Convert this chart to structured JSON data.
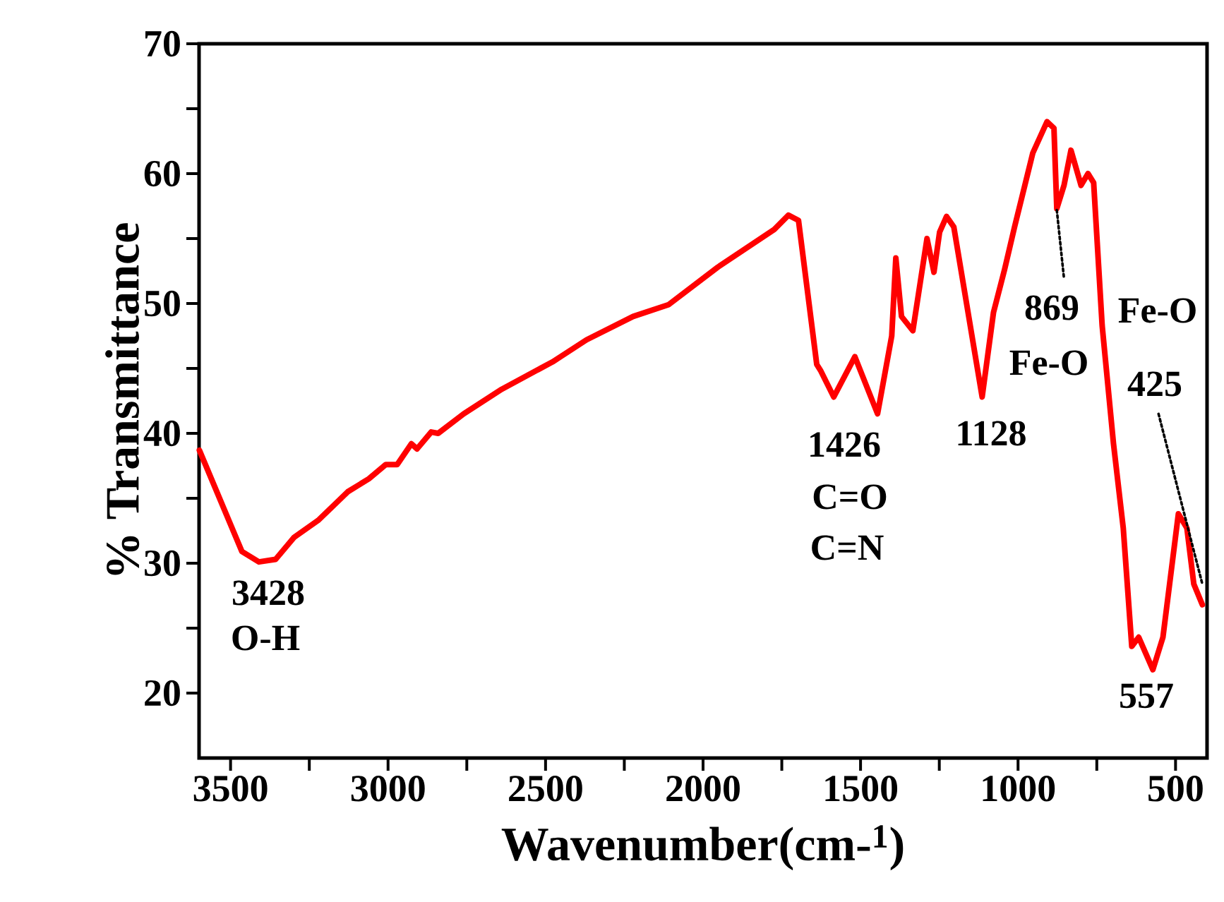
{
  "chart_data": {
    "type": "line",
    "xlabel": "Wavenumber(cm-$^{1}$)",
    "ylabel": "% Transmittance",
    "xlim": [
      3600,
      400
    ],
    "ylim": [
      15,
      70
    ],
    "xticks": [
      3500,
      {
        "value": 3250,
        "label": null
      },
      3000,
      {
        "value": 2750,
        "label": null
      },
      2500,
      {
        "value": 2250,
        "label": null
      },
      2000,
      {
        "value": 1750,
        "label": null
      },
      1500,
      {
        "value": 1250,
        "label": null
      },
      1000,
      {
        "value": 750,
        "label": null
      },
      500
    ],
    "yticks": [
      20,
      {
        "value": 25,
        "label": null
      },
      30,
      {
        "value": 35,
        "label": null
      },
      40,
      {
        "value": 45,
        "label": null
      },
      50,
      {
        "value": 55,
        "label": null
      },
      60,
      {
        "value": 65,
        "label": null
      },
      70
    ],
    "marker": "none",
    "series": [
      {
        "color": "#ff0000",
        "line_style": "solid",
        "x": [
          3599,
          3464,
          3410,
          3357,
          3298,
          3222,
          3128,
          3061,
          3007,
          2971,
          2926,
          2908,
          2863,
          2841,
          2760,
          2639,
          2478,
          2370,
          2222,
          2110,
          1953,
          1774,
          1729,
          1697,
          1639,
          1626,
          1585,
          1518,
          1446,
          1401,
          1388,
          1370,
          1334,
          1289,
          1267,
          1249,
          1227,
          1204,
          1114,
          1078,
          1043,
          1011,
          953,
          908,
          886,
          877,
          854,
          832,
          800,
          778,
          760,
          733,
          697,
          666,
          639,
          617,
          572,
          540,
          491,
          464,
          442,
          415
        ],
        "values": [
          38.7,
          30.9,
          30.1,
          30.3,
          32.0,
          33.3,
          35.5,
          36.5,
          37.6,
          37.6,
          39.2,
          38.8,
          40.1,
          40.0,
          41.5,
          43.4,
          45.5,
          47.2,
          49.0,
          49.9,
          52.8,
          55.7,
          56.8,
          56.4,
          45.3,
          44.8,
          42.8,
          45.9,
          41.5,
          47.5,
          53.5,
          49.0,
          47.9,
          55.0,
          52.4,
          55.5,
          56.7,
          55.9,
          42.8,
          49.3,
          52.6,
          55.9,
          61.6,
          64.0,
          63.5,
          57.3,
          59.1,
          61.8,
          59.1,
          60.0,
          59.3,
          48.3,
          39.2,
          32.7,
          23.6,
          24.3,
          21.8,
          24.3,
          33.8,
          32.7,
          28.4,
          26.8
        ]
      },
      {
        "color": "#000000",
        "line_style": "dotted",
        "x": [
          877,
          854
        ],
        "values": [
          57.2,
          51.9
        ]
      },
      {
        "color": "#000000",
        "line_style": "dotted",
        "x": [
          554,
          415
        ],
        "values": [
          41.5,
          28.4
        ]
      }
    ],
    "annotations": [
      "3428",
      "O-H",
      "1426",
      "C=O",
      "C=N",
      "1128",
      "869",
      "Fe-O",
      "Fe-O",
      "425",
      "557"
    ]
  }
}
